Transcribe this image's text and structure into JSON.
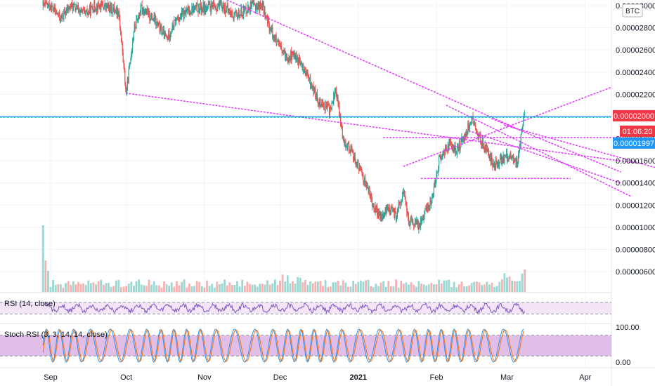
{
  "chart_data": {
    "type": "candlestick",
    "currency": "BTC",
    "price_axis": {
      "min": 4.6e-06,
      "max": 3.1e-06,
      "ticks": [
        "0.00003000",
        "0.00002800",
        "0.00002600",
        "0.00002400",
        "0.00002200",
        "0.00002000",
        "0.00001800",
        "0.00001600",
        "0.00001400",
        "0.00001200",
        "0.00001000",
        "0.00000800",
        "0.00000600"
      ],
      "tick_values": [
        3e-05,
        2.8e-05,
        2.6e-05,
        2.4e-05,
        2.2e-05,
        2e-05,
        1.8e-05,
        1.6e-05,
        1.4e-05,
        1.2e-05,
        1e-05,
        8e-06,
        6e-06
      ]
    },
    "time_axis": {
      "labels": [
        {
          "text": "Sep",
          "day": 0,
          "bold": false
        },
        {
          "text": "Oct",
          "day": 30,
          "bold": false
        },
        {
          "text": "Nov",
          "day": 61,
          "bold": false
        },
        {
          "text": "Dec",
          "day": 91,
          "bold": false
        },
        {
          "text": "2021",
          "day": 122,
          "bold": true
        },
        {
          "text": "Feb",
          "day": 153,
          "bold": false
        },
        {
          "text": "Mar",
          "day": 181,
          "bold": false
        },
        {
          "text": "Apr",
          "day": 212,
          "bold": false
        }
      ]
    },
    "price_path": [
      [
        0,
        3e-05
      ],
      [
        4,
        2.88e-05
      ],
      [
        8,
        3e-05
      ],
      [
        14,
        2.92e-05
      ],
      [
        17,
        2.99e-05
      ],
      [
        20,
        3e-05
      ],
      [
        27,
        2.95e-05
      ],
      [
        30,
        2.2e-05
      ],
      [
        33,
        2.78e-05
      ],
      [
        36,
        2.98e-05
      ],
      [
        41,
        2.87e-05
      ],
      [
        46,
        2.7e-05
      ],
      [
        50,
        2.88e-05
      ],
      [
        56,
        2.97e-05
      ],
      [
        62,
        2.98e-05
      ],
      [
        68,
        3e-05
      ],
      [
        73,
        2.9e-05
      ],
      [
        79,
        2.99e-05
      ],
      [
        84,
        3e-05
      ],
      [
        86,
        2.85e-05
      ],
      [
        90,
        2.65e-05
      ],
      [
        93,
        2.54e-05
      ],
      [
        97,
        2.55e-05
      ],
      [
        101,
        2.4e-05
      ],
      [
        106,
        2.15e-05
      ],
      [
        111,
        2.05e-05
      ],
      [
        113,
        2.25e-05
      ],
      [
        116,
        1.8e-05
      ],
      [
        119,
        1.7e-05
      ],
      [
        122,
        1.55e-05
      ],
      [
        125,
        1.4e-05
      ],
      [
        128,
        1.2e-05
      ],
      [
        131,
        1.08e-05
      ],
      [
        134,
        1.18e-05
      ],
      [
        137,
        1.1e-05
      ],
      [
        140,
        1.32e-05
      ],
      [
        142,
        1.05e-05
      ],
      [
        146,
        1.02e-05
      ],
      [
        148,
        1.12e-05
      ],
      [
        151,
        1.24e-05
      ],
      [
        154,
        1.6e-05
      ],
      [
        158,
        1.75e-05
      ],
      [
        161,
        1.68e-05
      ],
      [
        164,
        1.82e-05
      ],
      [
        167,
        1.98e-05
      ],
      [
        170,
        1.8e-05
      ],
      [
        173,
        1.68e-05
      ],
      [
        176,
        1.56e-05
      ],
      [
        179,
        1.62e-05
      ],
      [
        182,
        1.65e-05
      ],
      [
        185,
        1.58e-05
      ],
      [
        188,
        2.05e-05
      ]
    ],
    "horizontal_level": 2e-05,
    "tags": [
      {
        "label": "0.00002000",
        "color": "#f23645"
      },
      {
        "label": "01:06:20",
        "color": "#f23645"
      },
      {
        "label": "0.00001997",
        "color": "#2196f3"
      }
    ],
    "trendlines": [
      {
        "from": [
          63,
          3.12e-05
        ],
        "to": [
          186,
          1.88e-05
        ]
      },
      {
        "from": [
          30,
          2.21e-05
        ],
        "to": [
          232,
          1.58e-05
        ]
      },
      {
        "from": [
          140,
          1.55e-05
        ],
        "to": [
          222,
          2.26e-05
        ]
      },
      {
        "from": [
          132,
          1.81e-05
        ],
        "to": [
          226,
          1.81e-05
        ]
      },
      {
        "from": [
          180,
          1.92e-05
        ],
        "to": [
          246,
          1.5e-05
        ]
      },
      {
        "from": [
          175,
          1.98e-05
        ],
        "to": [
          226,
          1.5e-05
        ]
      },
      {
        "from": [
          166,
          1.87e-05
        ],
        "to": [
          226,
          1.4e-05
        ]
      },
      {
        "from": [
          157,
          2.1e-05
        ],
        "to": [
          230,
          1.28e-05
        ]
      },
      {
        "from": [
          147,
          1.44e-05
        ],
        "to": [
          206,
          1.44e-05
        ]
      }
    ],
    "rsi": {
      "title": "RSI (14, close)",
      "upper": 70,
      "lower": 30
    },
    "stoch_rsi": {
      "title": "Stoch RSI (3, 3, 14, 14, close)",
      "ticks": [
        "100.00",
        "0.00"
      ],
      "upper": 80,
      "lower": 20
    },
    "colors": {
      "up": "#26a69a",
      "down": "#ef5350",
      "trendline": "#e040fb",
      "level": "#2962ff",
      "rsi_line": "#7e57c2",
      "rsi_band": "#f3e5f5",
      "stoch_k": "#2196f3",
      "stoch_d": "#ff6d00",
      "stoch_band": "#e1bee7"
    }
  }
}
